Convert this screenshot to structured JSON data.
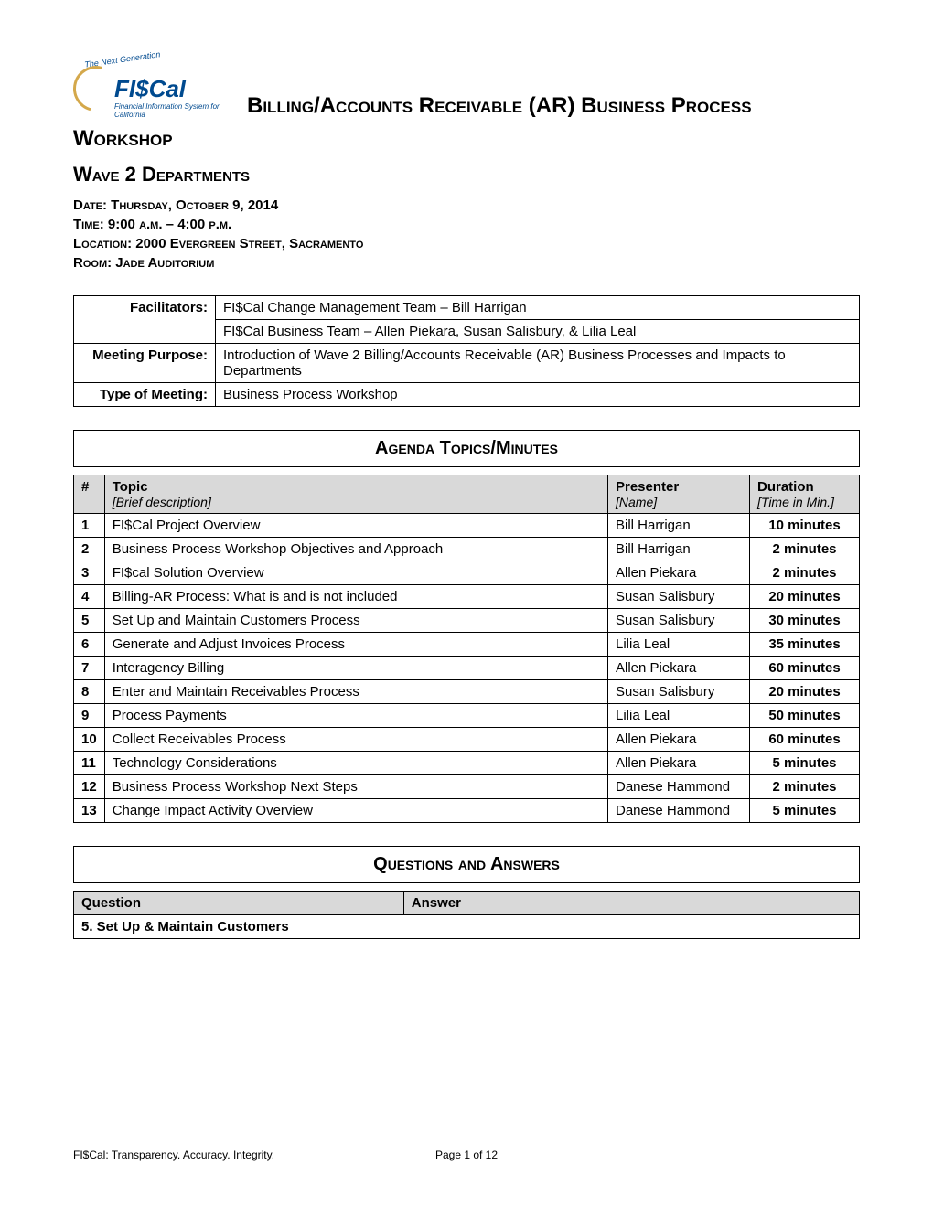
{
  "logo": {
    "arc_text": "The Next Generation",
    "main": "FI$Cal",
    "sub": "Financial Information System for California"
  },
  "title": "Billing/Accounts Receivable (AR) Business Process",
  "subtitle": "Workshop",
  "wave": "Wave 2 Departments",
  "meta": {
    "date": "Date: Thursday, October 9, 2014",
    "time": "Time: 9:00 a.m. – 4:00 p.m.",
    "location": "Location: 2000 Evergreen Street, Sacramento",
    "room": "Room: Jade Auditorium"
  },
  "info": {
    "facilitators_label": "Facilitators:",
    "facilitators_1": "FI$Cal Change Management Team – Bill Harrigan",
    "facilitators_2": "FI$Cal Business Team – Allen Piekara, Susan Salisbury, & Lilia Leal",
    "purpose_label": "Meeting Purpose:",
    "purpose": "Introduction of Wave 2 Billing/Accounts Receivable (AR) Business Processes and Impacts to Departments",
    "type_label": "Type of Meeting:",
    "type": "Business Process Workshop"
  },
  "agenda_header": "Agenda Topics/Minutes",
  "agenda_cols": {
    "num": "#",
    "topic": "Topic",
    "topic_sub": "[Brief description]",
    "presenter": "Presenter",
    "presenter_sub": "[Name]",
    "duration": "Duration",
    "duration_sub": "[Time in Min.]"
  },
  "agenda": [
    {
      "n": "1",
      "topic": "FI$Cal Project Overview",
      "presenter": "Bill Harrigan",
      "duration": "10 minutes"
    },
    {
      "n": "2",
      "topic": "Business Process Workshop Objectives and Approach",
      "presenter": "Bill Harrigan",
      "duration": "2 minutes"
    },
    {
      "n": "3",
      "topic": "FI$cal Solution Overview",
      "presenter": "Allen Piekara",
      "duration": "2 minutes"
    },
    {
      "n": "4",
      "topic": "Billing-AR Process: What is and is not included",
      "presenter": "Susan Salisbury",
      "duration": "20 minutes"
    },
    {
      "n": "5",
      "topic": "Set Up and Maintain Customers Process",
      "presenter": "Susan Salisbury",
      "duration": "30 minutes"
    },
    {
      "n": "6",
      "topic": "Generate and Adjust Invoices Process",
      "presenter": "Lilia Leal",
      "duration": "35 minutes"
    },
    {
      "n": "7",
      "topic": "Interagency Billing",
      "presenter": "Allen Piekara",
      "duration": "60 minutes"
    },
    {
      "n": "8",
      "topic": "Enter and Maintain Receivables Process",
      "presenter": "Susan Salisbury",
      "duration": "20 minutes"
    },
    {
      "n": "9",
      "topic": "Process Payments",
      "presenter": "Lilia Leal",
      "duration": "50 minutes"
    },
    {
      "n": "10",
      "topic": "Collect Receivables Process",
      "presenter": "Allen Piekara",
      "duration": "60 minutes"
    },
    {
      "n": "11",
      "topic": "Technology Considerations",
      "presenter": "Allen Piekara",
      "duration": "5 minutes"
    },
    {
      "n": "12",
      "topic": "Business Process Workshop Next Steps",
      "presenter": "Danese Hammond",
      "duration": "2 minutes"
    },
    {
      "n": "13",
      "topic": "Change Impact Activity Overview",
      "presenter": "Danese Hammond",
      "duration": "5 minutes"
    }
  ],
  "qa_header": "Questions and Answers",
  "qa_cols": {
    "question": "Question",
    "answer": "Answer"
  },
  "qa_section": "5. Set Up & Maintain Customers",
  "footer": {
    "left": "FI$Cal: Transparency. Accuracy. Integrity.",
    "center": "Page 1 of 12"
  },
  "colors": {
    "logo_blue": "#004a8f",
    "logo_gold": "#d4a84b",
    "header_gray": "#d9d9d9"
  }
}
